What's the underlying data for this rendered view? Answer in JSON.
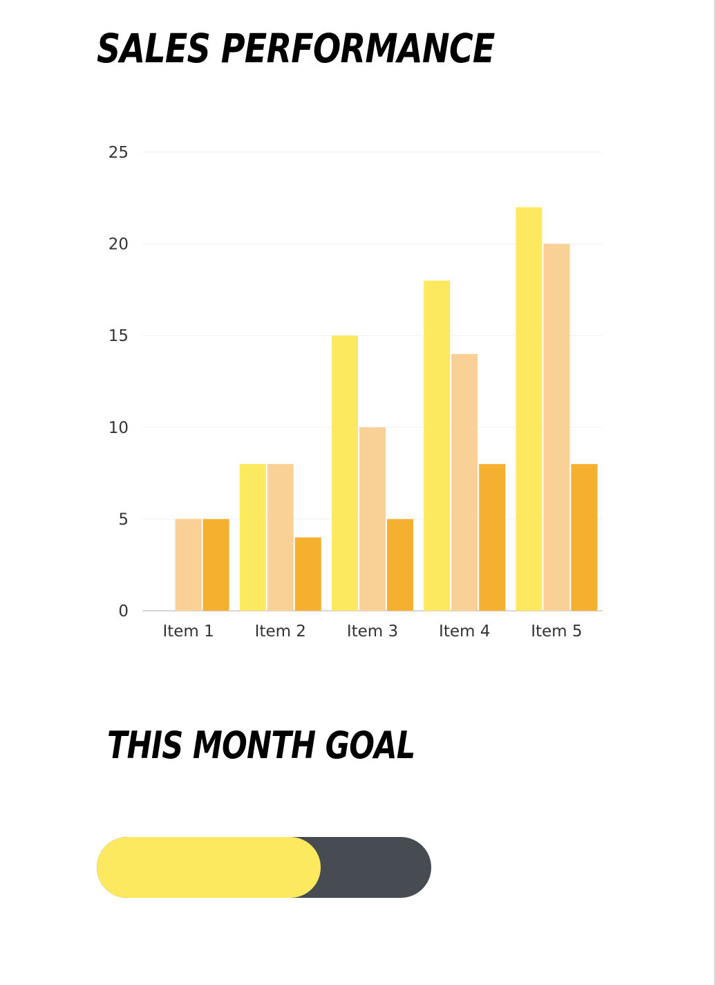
{
  "title": "SALES PERFORMANCE",
  "goal": {
    "title": "THIS MONTH GOAL",
    "progress": 0.67,
    "fill_color": "#fde95f",
    "track_color": "#474b52"
  },
  "chart_data": {
    "type": "bar",
    "categories": [
      "Item 1",
      "Item 2",
      "Item 3",
      "Item 4",
      "Item 5"
    ],
    "series": [
      {
        "values": [
          0,
          8,
          15,
          18,
          22
        ],
        "color": "#fde95f"
      },
      {
        "values": [
          5,
          8,
          10,
          14,
          20
        ],
        "color": "#f9d095"
      },
      {
        "values": [
          5,
          4,
          5,
          8,
          8
        ],
        "color": "#f5b02f"
      }
    ],
    "yticks": [
      "0",
      "5",
      "10",
      "15",
      "20",
      "25"
    ],
    "ylim": [
      0,
      25
    ],
    "grid": true,
    "legend": "none"
  }
}
